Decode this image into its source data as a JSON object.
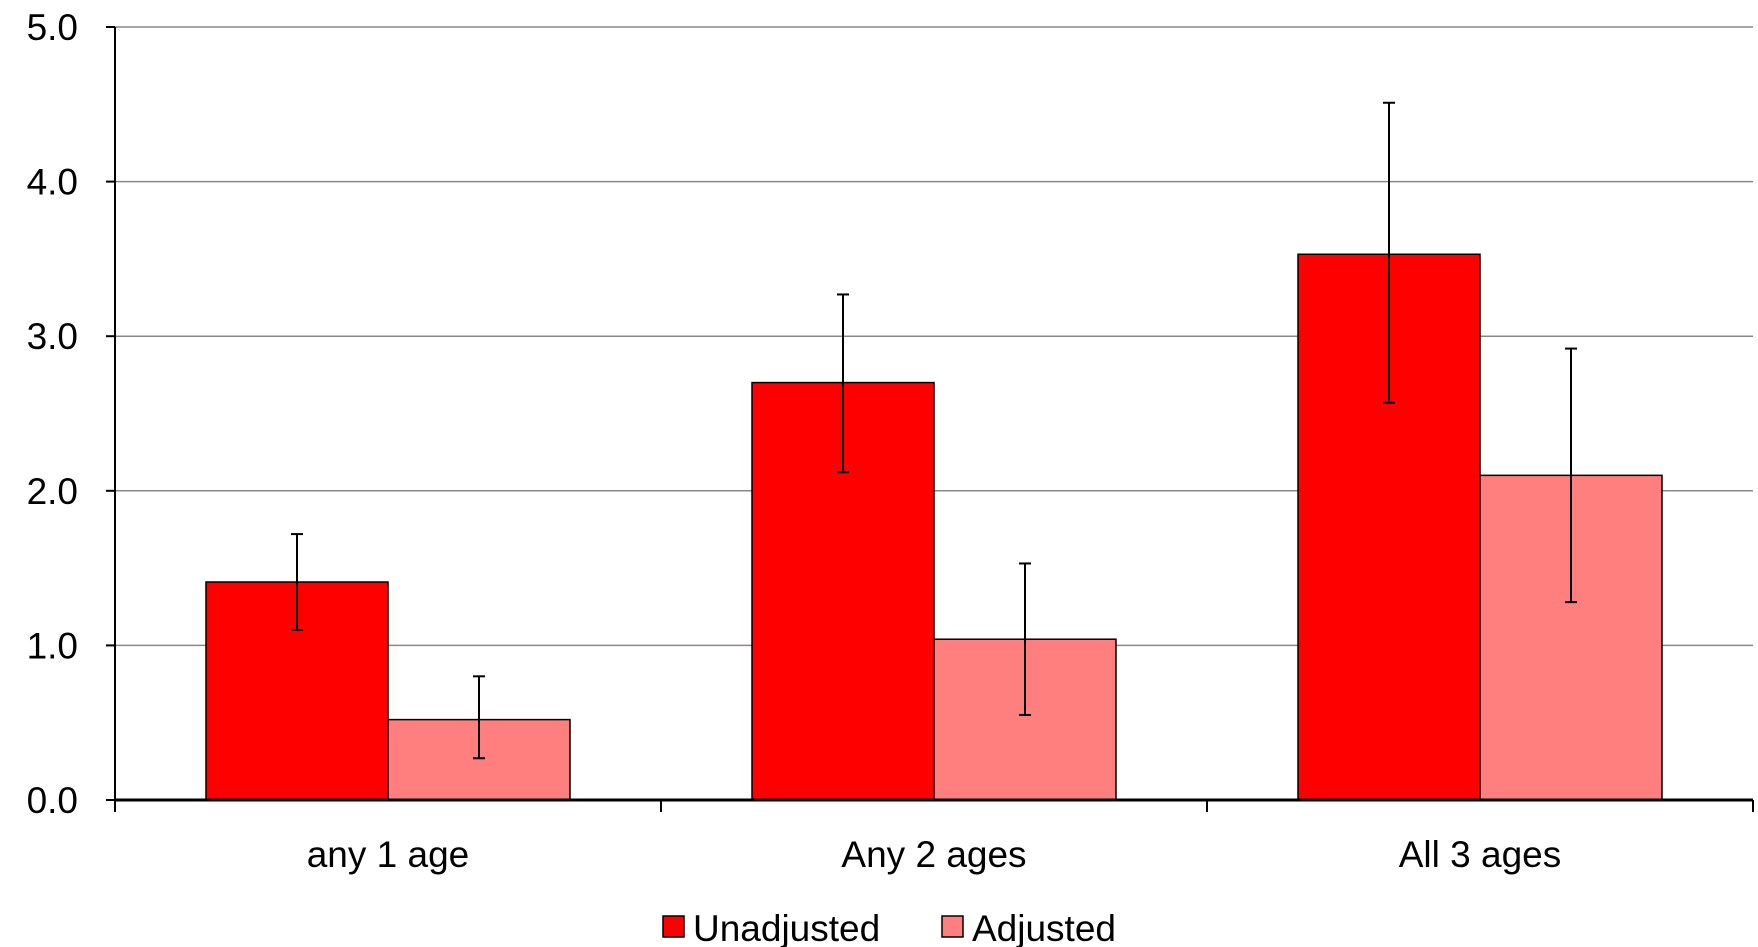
{
  "chart_data": {
    "type": "bar",
    "categories": [
      "any 1 age",
      "Any 2 ages",
      "All 3 ages"
    ],
    "series": [
      {
        "name": "Unadjusted",
        "color": "#ff0000",
        "values": [
          1.41,
          2.7,
          3.53
        ],
        "error_low": [
          1.1,
          2.12,
          2.57
        ],
        "error_high": [
          1.72,
          3.27,
          4.51
        ]
      },
      {
        "name": "Adjusted",
        "color": "#ff7f7f",
        "values": [
          0.52,
          1.04,
          2.1
        ],
        "error_low": [
          0.27,
          0.55,
          1.28
        ],
        "error_high": [
          0.8,
          1.53,
          2.92
        ]
      }
    ],
    "ylim": [
      0,
      5
    ],
    "y_ticks": [
      "0.0",
      "1.0",
      "2.0",
      "3.0",
      "4.0",
      "5.0"
    ],
    "y_tick_values": [
      0,
      1,
      2,
      3,
      4,
      5
    ],
    "grid": true,
    "legend_position": "bottom"
  }
}
